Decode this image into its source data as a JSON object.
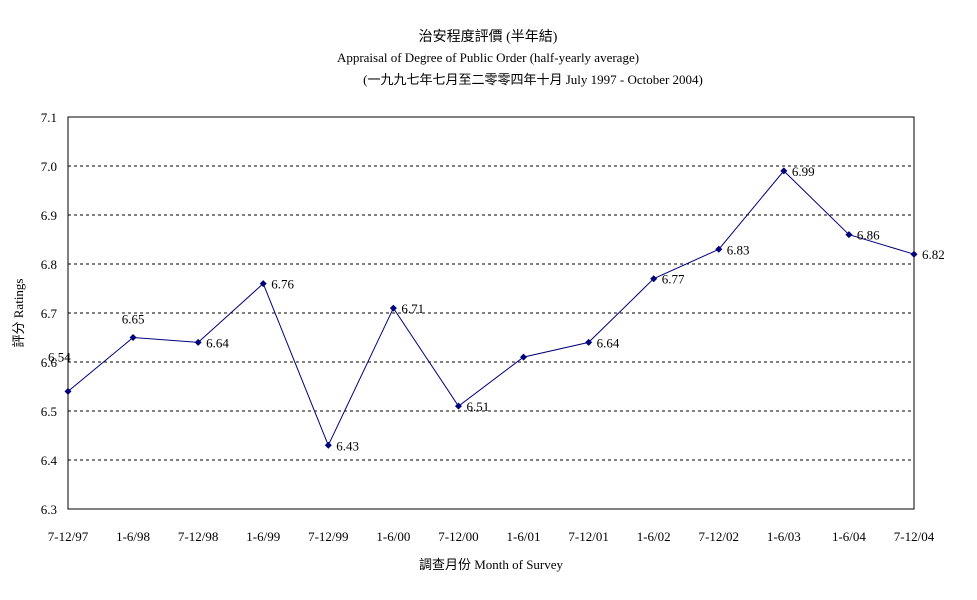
{
  "chart_data": {
    "type": "line",
    "title": "治安程度評價 (半年結)",
    "subtitle": "Appraisal of Degree of Public Order (half-yearly average)",
    "period": "(一九九七年七月至二零零四年十月 July 1997 -  October 2004)",
    "xlabel": "調查月份 Month of Survey",
    "ylabel": "評分 Ratings",
    "ylim": [
      6.3,
      7.1
    ],
    "yticks": [
      "6.3",
      "6.4",
      "6.5",
      "6.6",
      "6.7",
      "6.8",
      "6.9",
      "7.0",
      "7.1"
    ],
    "grid": true,
    "categories": [
      "7-12/97",
      "1-6/98",
      "7-12/98",
      "1-6/99",
      "7-12/99",
      "1-6/00",
      "7-12/00",
      "1-6/01",
      "7-12/01",
      "1-6/02",
      "7-12/02",
      "1-6/03",
      "1-6/04",
      "7-12/04"
    ],
    "values": [
      6.54,
      6.65,
      6.64,
      6.76,
      6.43,
      6.71,
      6.51,
      6.61,
      6.64,
      6.77,
      6.83,
      6.99,
      6.86,
      6.82
    ],
    "data_labels": [
      "6.54",
      "6.65",
      "6.64",
      "6.76",
      "6.43",
      "6.71",
      "6.51",
      "",
      "6.64",
      "6.77",
      "6.83",
      "6.99",
      "6.86",
      "6.82"
    ],
    "line_color": "#00007a"
  }
}
